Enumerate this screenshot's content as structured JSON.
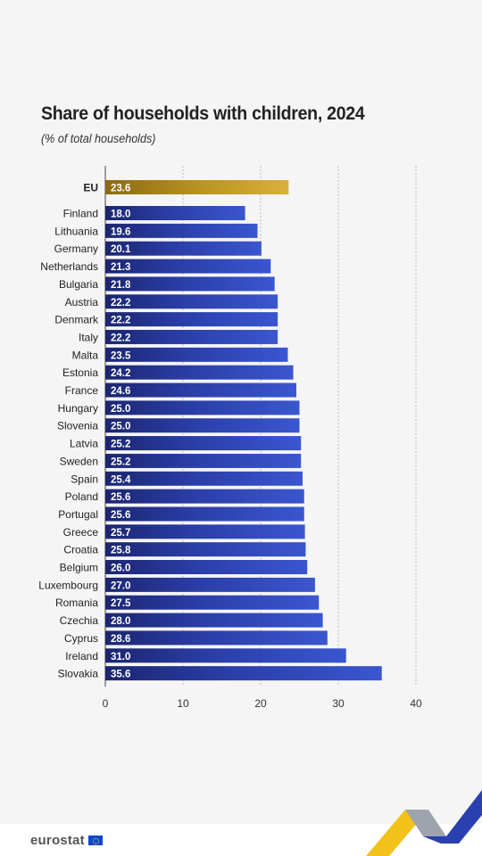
{
  "title": "Share of households with children, 2024",
  "subtitle": "(% of total households)",
  "brand": "eurostat",
  "colors": {
    "eu_bar": "#c7a02a",
    "country_bar": "#2b3ea8",
    "grid": "#bbbbbb"
  },
  "chart_data": {
    "type": "bar",
    "orientation": "horizontal",
    "categories": [
      "EU",
      "Finland",
      "Lithuania",
      "Germany",
      "Netherlands",
      "Bulgaria",
      "Austria",
      "Denmark",
      "Italy",
      "Malta",
      "Estonia",
      "France",
      "Hungary",
      "Slovenia",
      "Latvia",
      "Sweden",
      "Spain",
      "Poland",
      "Portugal",
      "Greece",
      "Croatia",
      "Belgium",
      "Luxembourg",
      "Romania",
      "Czechia",
      "Cyprus",
      "Ireland",
      "Slovakia"
    ],
    "values": [
      23.6,
      18.0,
      19.6,
      20.1,
      21.3,
      21.8,
      22.2,
      22.2,
      22.2,
      23.5,
      24.2,
      24.6,
      25.0,
      25.0,
      25.2,
      25.2,
      25.4,
      25.6,
      25.6,
      25.7,
      25.8,
      26.0,
      27.0,
      27.5,
      28.0,
      28.6,
      31.0,
      35.6
    ],
    "value_labels": [
      "23.6",
      "18.0",
      "19.6",
      "20.1",
      "21.3",
      "21.8",
      "22.2",
      "22.2",
      "22.2",
      "23.5",
      "24.2",
      "24.6",
      "25.0",
      "25.0",
      "25.2",
      "25.2",
      "25.4",
      "25.6",
      "25.6",
      "25.7",
      "25.8",
      "26.0",
      "27.0",
      "27.5",
      "28.0",
      "28.6",
      "31.0",
      "35.6"
    ],
    "xlim": [
      0,
      40
    ],
    "xticks": [
      "0",
      "10",
      "20",
      "30",
      "40"
    ],
    "grid": true,
    "xlabel": "",
    "ylabel": ""
  }
}
